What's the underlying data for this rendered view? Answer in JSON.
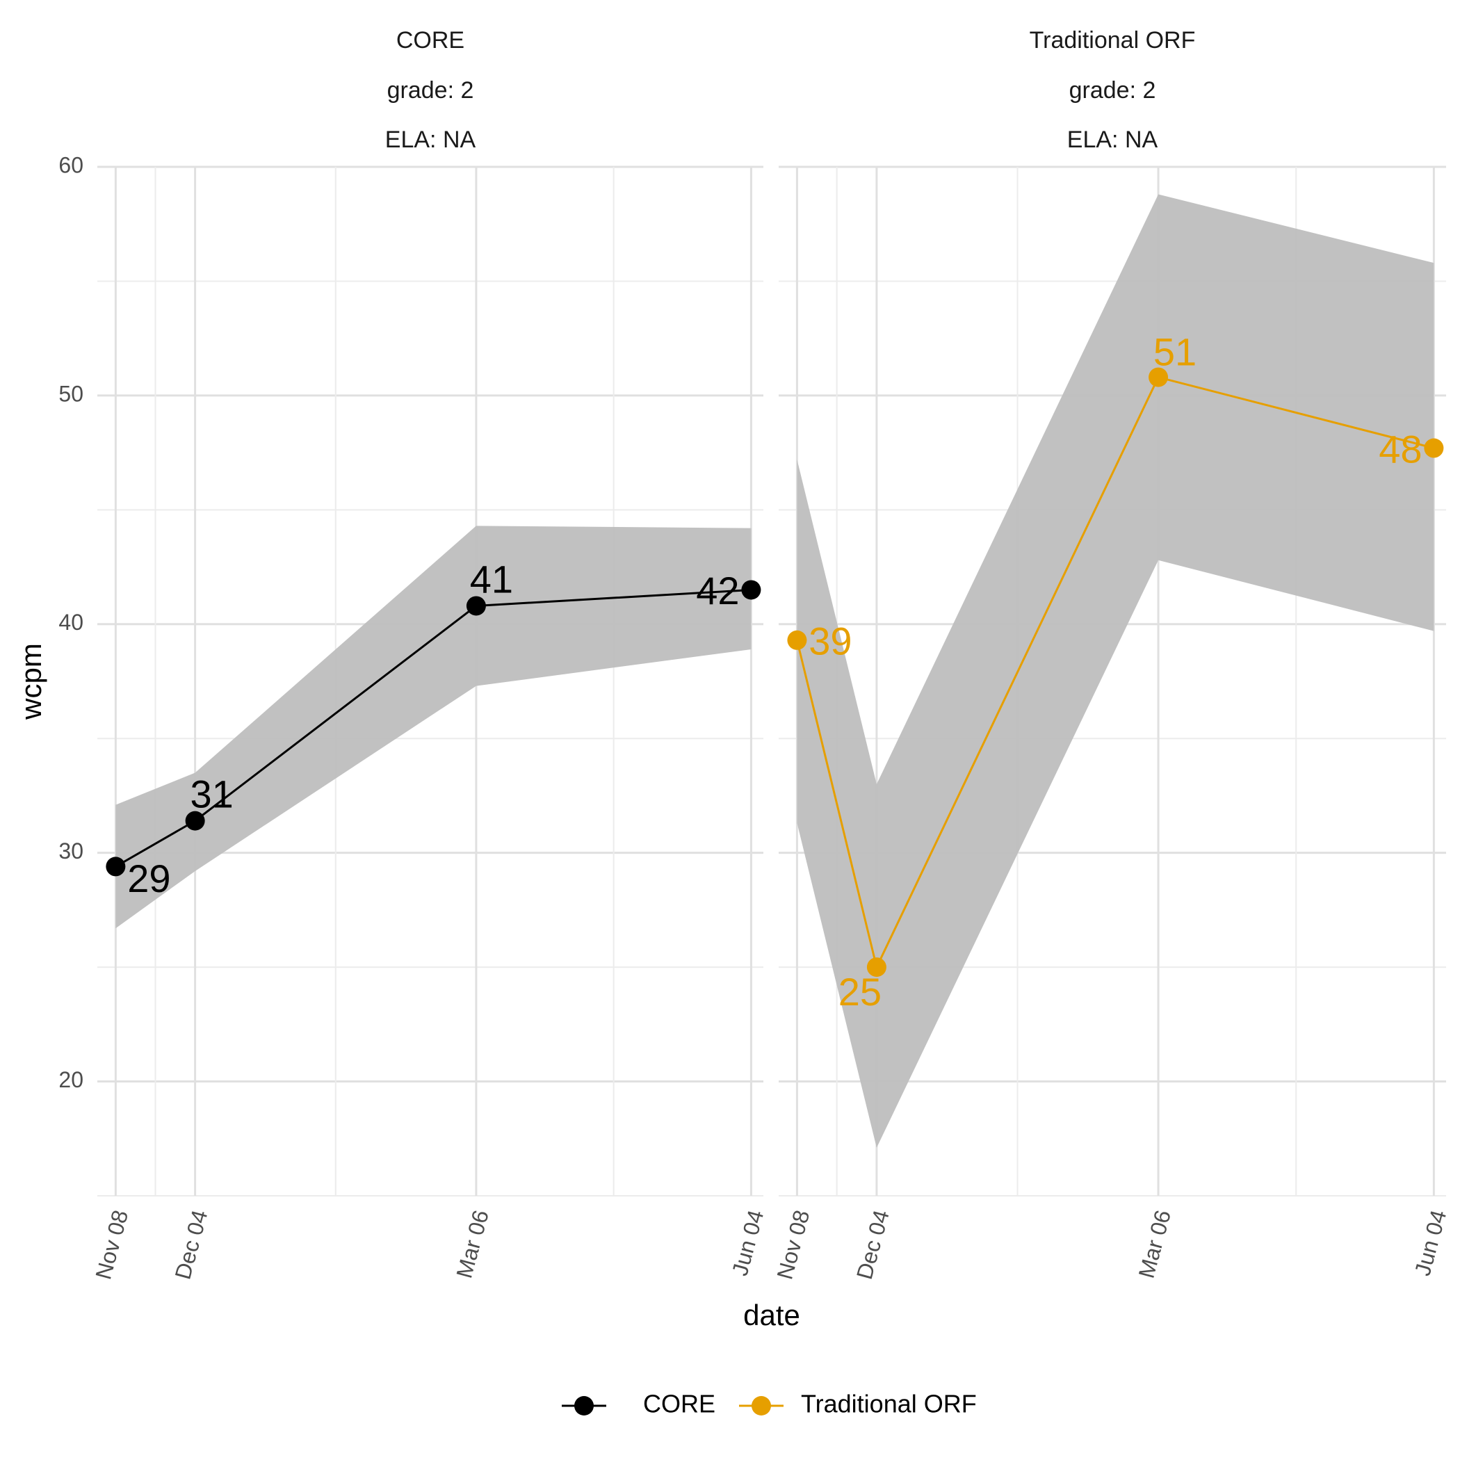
{
  "chart_data": {
    "type": "line",
    "xlabel": "date",
    "ylabel": "wcpm",
    "x_ticks": [
      "Nov 08",
      "Dec 04",
      "Mar 06",
      "Jun 04"
    ],
    "ylim": [
      15,
      60
    ],
    "y_ticks": [
      20,
      30,
      40,
      50,
      60
    ],
    "grid": true,
    "legend_position": "bottom",
    "panels": [
      {
        "strip": [
          "CORE",
          "grade: 2",
          "ELA: NA"
        ],
        "series_ref": "CORE",
        "x": [
          "Nov 08",
          "Dec 04",
          "Mar 06",
          "Jun 04"
        ],
        "values": [
          29.4,
          31.4,
          40.8,
          41.5
        ],
        "data_labels": [
          "29",
          "31",
          "41",
          "42"
        ],
        "ribbon_lower": [
          26.7,
          29.2,
          37.3,
          38.9
        ],
        "ribbon_upper": [
          32.1,
          33.5,
          44.3,
          44.2
        ]
      },
      {
        "strip": [
          "Traditional ORF",
          "grade: 2",
          "ELA: NA"
        ],
        "series_ref": "Traditional ORF",
        "x": [
          "Nov 08",
          "Dec 04",
          "Mar 06",
          "Jun 04"
        ],
        "values": [
          39.3,
          25.0,
          50.8,
          47.7
        ],
        "data_labels": [
          "39",
          "25",
          "51",
          "48"
        ],
        "ribbon_lower": [
          31.3,
          17.1,
          42.8,
          39.7
        ],
        "ribbon_upper": [
          47.2,
          33.0,
          58.8,
          55.8
        ]
      }
    ],
    "series": [
      {
        "name": "CORE",
        "color": "#000000"
      },
      {
        "name": "Traditional ORF",
        "color": "#E69F00"
      }
    ],
    "ribbon_color": "#bebebe"
  }
}
